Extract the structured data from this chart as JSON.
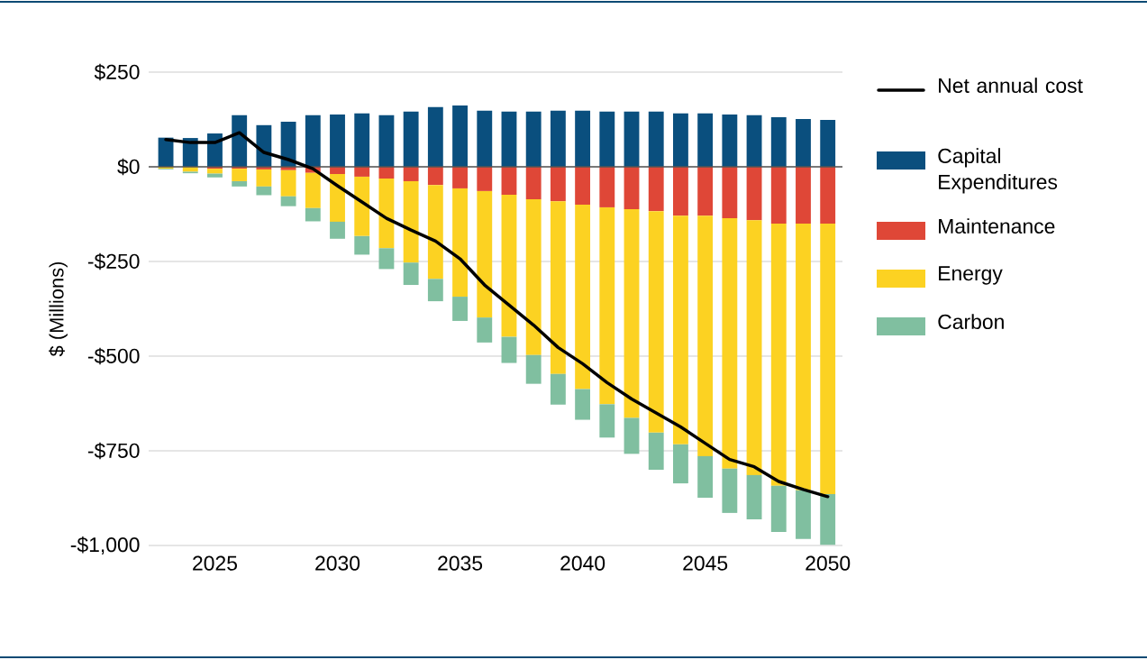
{
  "chart_data": {
    "type": "bar",
    "stacked": true,
    "ylabel": "$ (Millions)",
    "x": [
      2023,
      2024,
      2025,
      2026,
      2027,
      2028,
      2029,
      2030,
      2031,
      2032,
      2033,
      2034,
      2035,
      2036,
      2037,
      2038,
      2039,
      2040,
      2041,
      2042,
      2043,
      2044,
      2045,
      2046,
      2047,
      2048,
      2049,
      2050
    ],
    "series": [
      {
        "name": "Net annual cost",
        "type": "line",
        "color": "#000000",
        "values": [
          72,
          64,
          64,
          90,
          38,
          19,
          -5,
          -50,
          -93,
          -136,
          -167,
          -196,
          -243,
          -312,
          -365,
          -418,
          -477,
          -520,
          -570,
          -613,
          -650,
          -687,
          -730,
          -773,
          -792,
          -831,
          -852,
          -871
        ]
      },
      {
        "name": "Capital Expenditures",
        "color": "#0a4f7e",
        "values": [
          77,
          76,
          88,
          136,
          110,
          119,
          136,
          138,
          141,
          136,
          146,
          158,
          162,
          148,
          146,
          146,
          148,
          148,
          146,
          146,
          146,
          141,
          141,
          138,
          136,
          131,
          126,
          124
        ]
      },
      {
        "name": "Maintenance",
        "color": "#df4737",
        "values": [
          0,
          0,
          -5,
          -5,
          -7,
          -9,
          -16,
          -19,
          -26,
          -31,
          -38,
          -48,
          -57,
          -64,
          -74,
          -86,
          -91,
          -100,
          -107,
          -112,
          -117,
          -129,
          -129,
          -136,
          -141,
          -150,
          -150,
          -150
        ]
      },
      {
        "name": "Energy",
        "color": "#fcd222",
        "values": [
          -5,
          -13,
          -13,
          -33,
          -45,
          -69,
          -93,
          -126,
          -157,
          -184,
          -215,
          -248,
          -286,
          -334,
          -375,
          -411,
          -456,
          -487,
          -520,
          -551,
          -585,
          -604,
          -635,
          -661,
          -673,
          -692,
          -704,
          -714
        ]
      },
      {
        "name": "Carbon",
        "color": "#80bfa0",
        "values": [
          -2,
          -4,
          -10,
          -14,
          -23,
          -26,
          -35,
          -45,
          -49,
          -55,
          -59,
          -59,
          -64,
          -66,
          -69,
          -76,
          -81,
          -81,
          -88,
          -95,
          -98,
          -103,
          -110,
          -117,
          -117,
          -122,
          -129,
          -134
        ]
      }
    ],
    "xlim": [
      2022.3,
      2050.6
    ],
    "xticks": [
      2025,
      2030,
      2035,
      2040,
      2045,
      2050
    ],
    "ylim": [
      -1000,
      250
    ],
    "yticks": [
      {
        "value": 250,
        "label": "$250"
      },
      {
        "value": 0,
        "label": "$0"
      },
      {
        "value": -250,
        "label": "-$250"
      },
      {
        "value": -500,
        "label": "-$500"
      },
      {
        "value": -750,
        "label": "-$750"
      },
      {
        "value": -1000,
        "label": "-$1,000"
      }
    ],
    "ref_lines": [
      {
        "axis": "y",
        "value": 0,
        "color": "#555555"
      }
    ],
    "grid": "y",
    "legend": "right"
  }
}
